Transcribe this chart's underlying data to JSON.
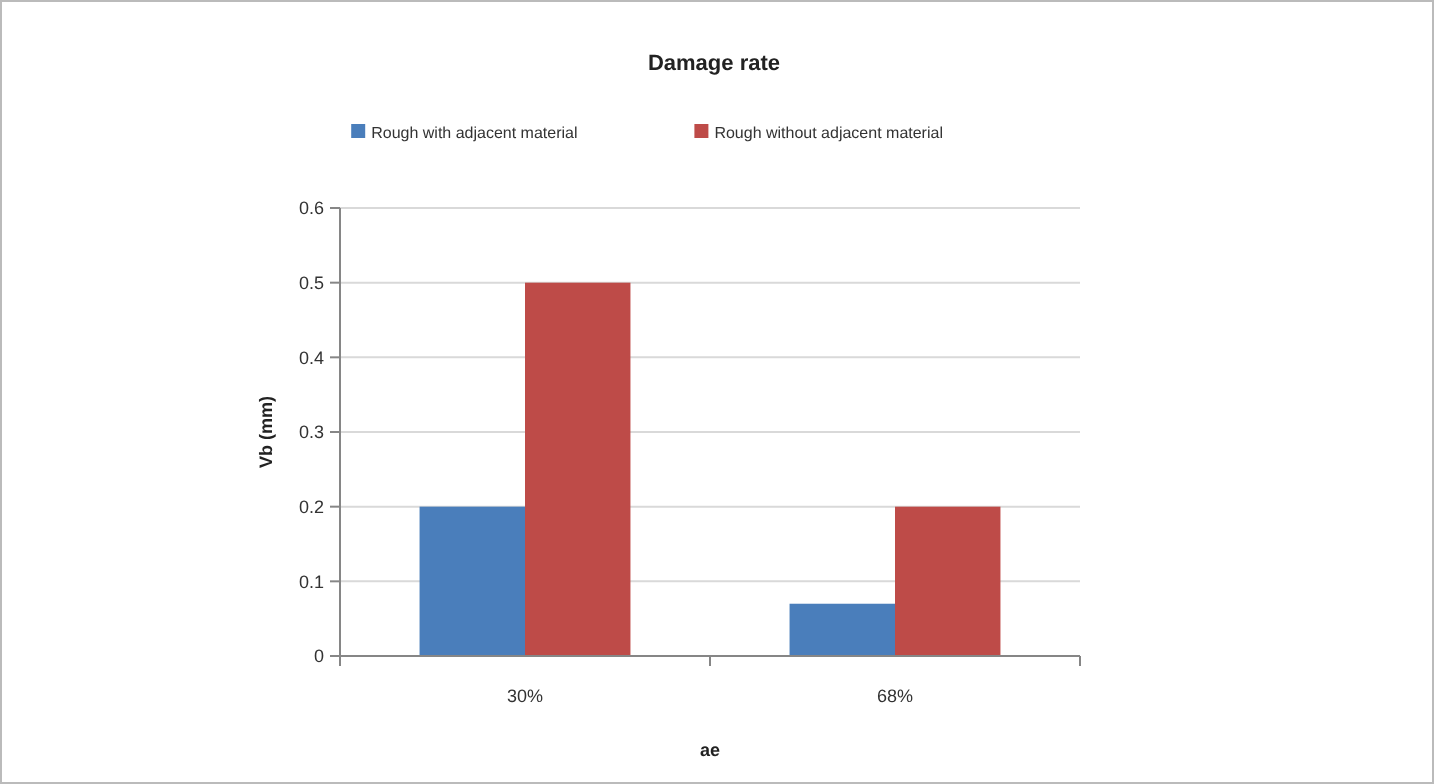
{
  "chart_data": {
    "type": "bar",
    "title": "Damage rate",
    "xlabel": "ae",
    "ylabel": "Vb (mm)",
    "categories": [
      "30%",
      "68%"
    ],
    "series": [
      {
        "name": "Rough with adjacent material",
        "color": "#4a7ebb",
        "values": [
          0.2,
          0.07
        ]
      },
      {
        "name": "Rough without adjacent material",
        "color": "#be4b48",
        "values": [
          0.5,
          0.2
        ]
      }
    ],
    "ylim": [
      0,
      0.6
    ],
    "yticks": [
      0,
      0.1,
      0.2,
      0.3,
      0.4,
      0.5,
      0.6
    ],
    "grid": "y",
    "legend": "top"
  }
}
